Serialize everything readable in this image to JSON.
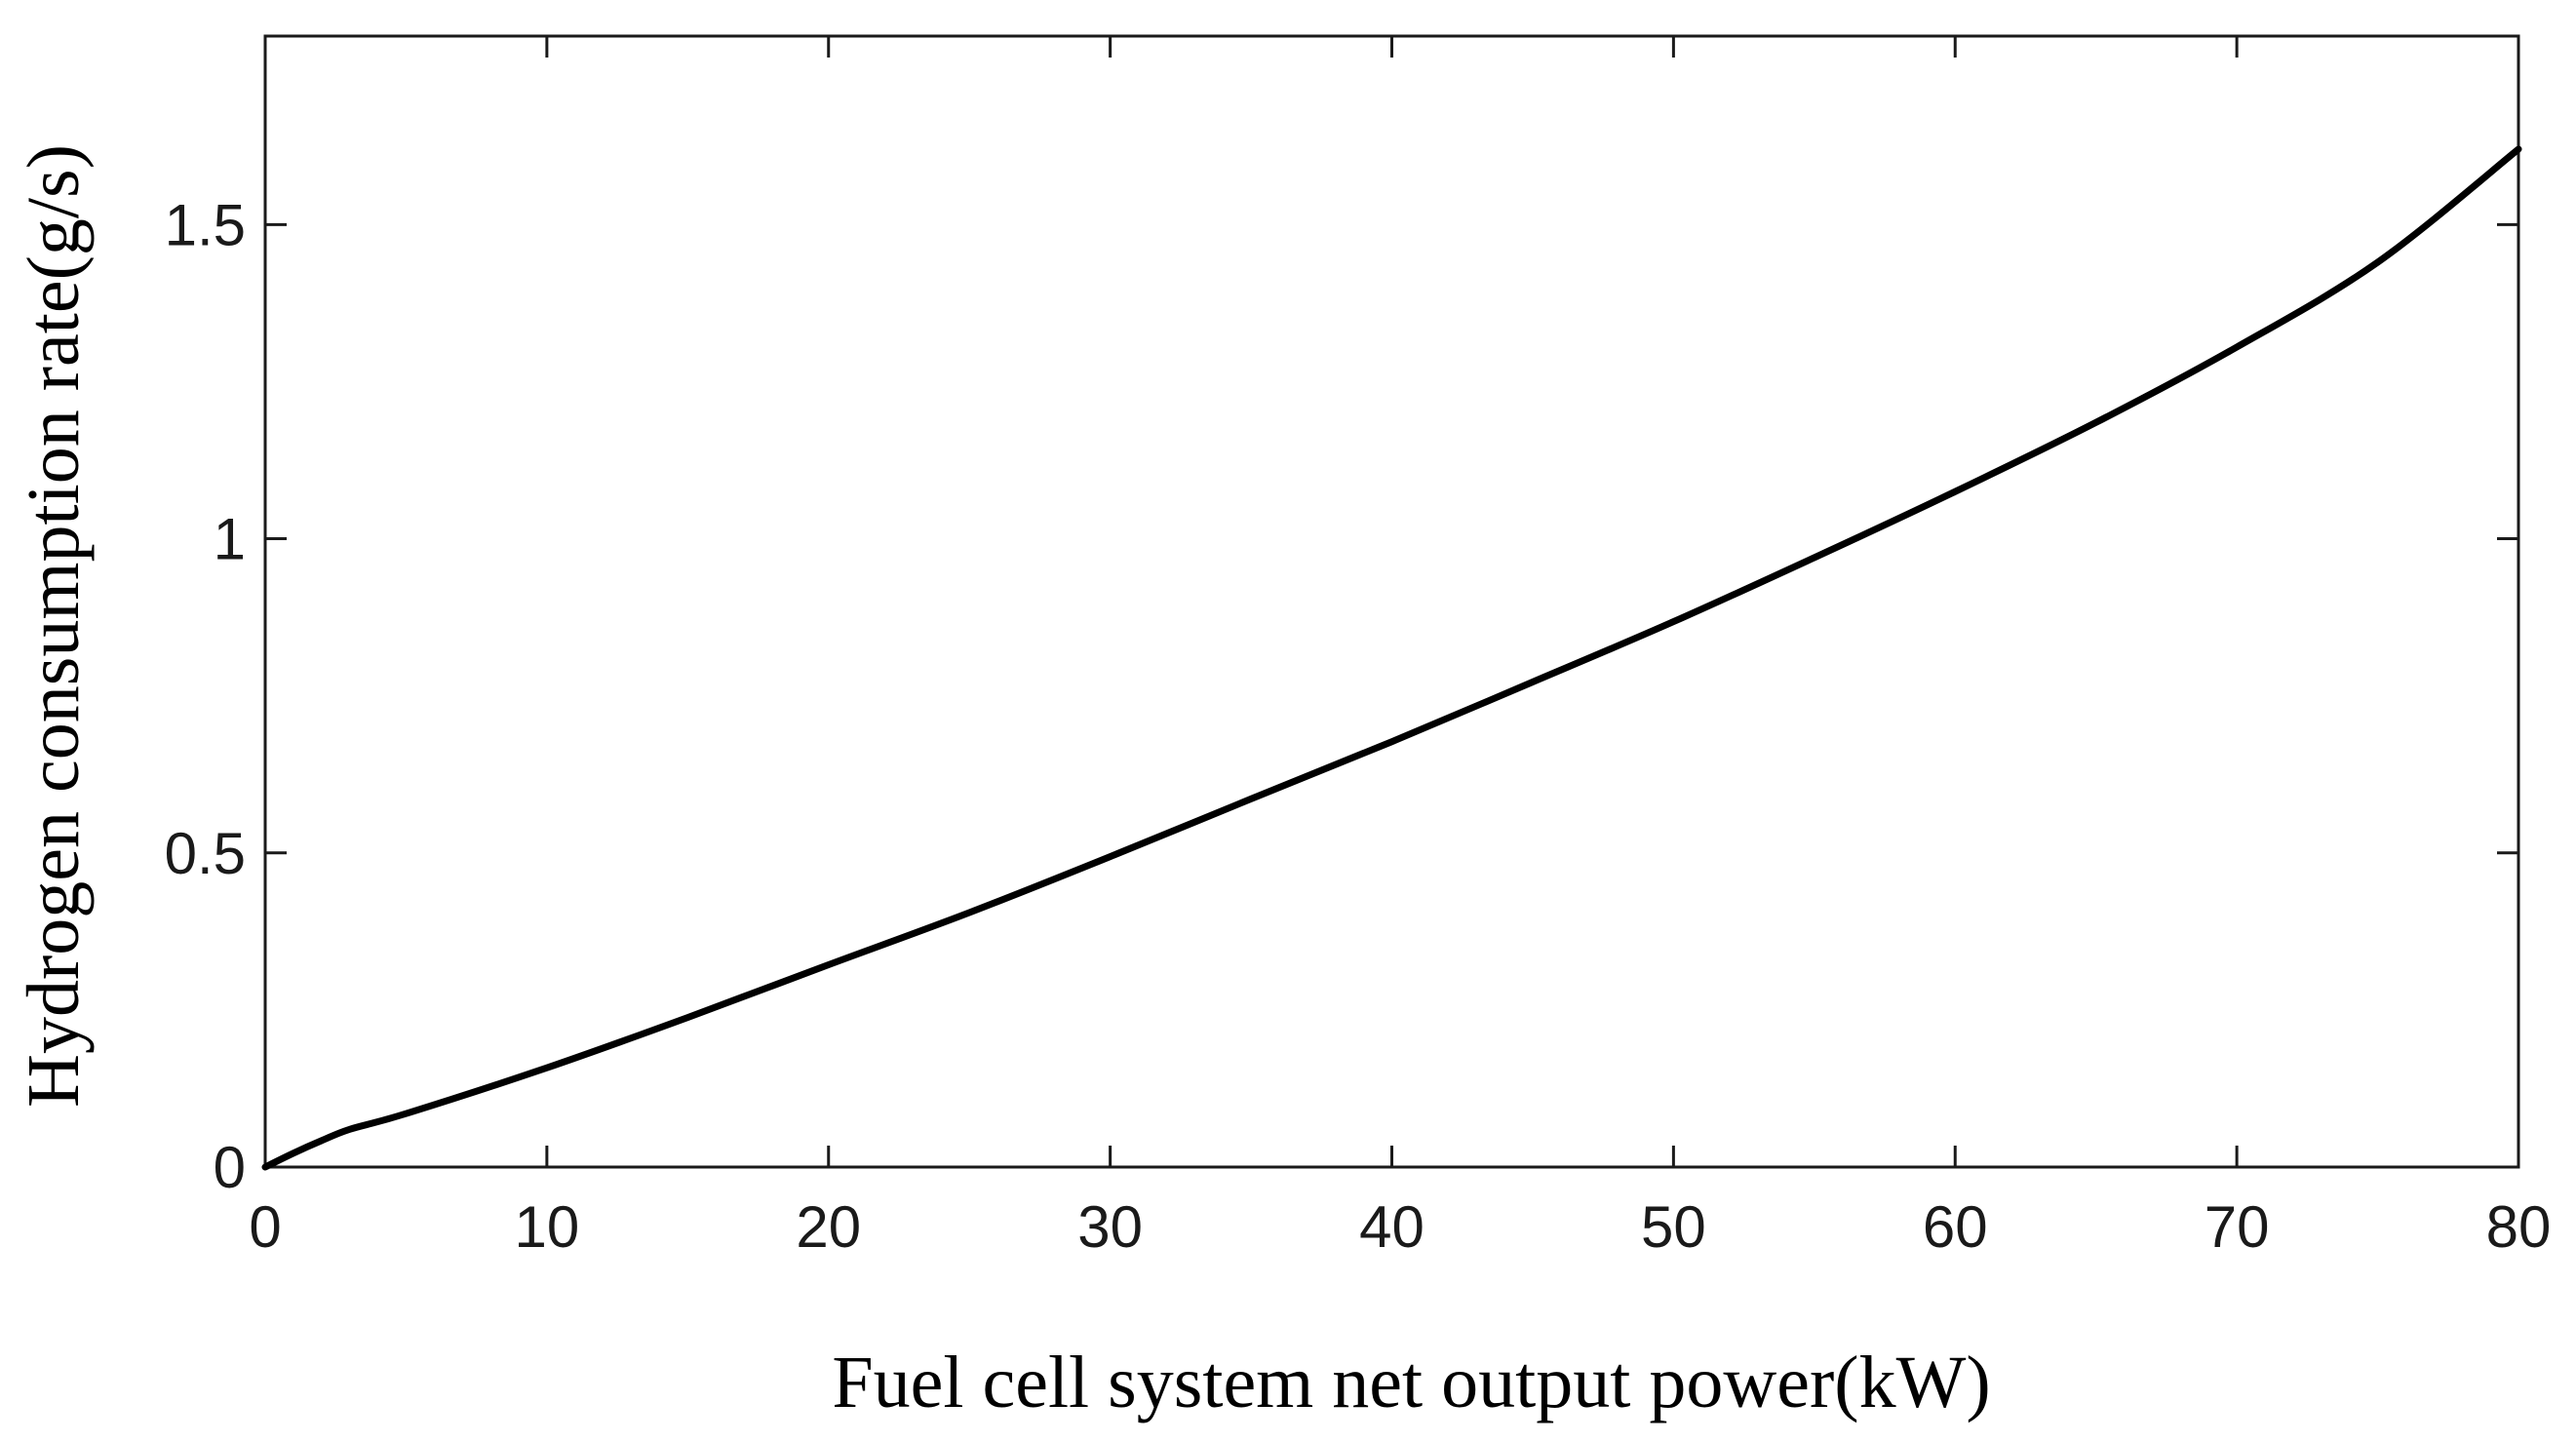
{
  "chart_data": {
    "type": "line",
    "title": "",
    "xlabel": "Fuel cell system net output power(kW)",
    "ylabel": "Hydrogen consumption rate(g/s)",
    "xlim": [
      0,
      80
    ],
    "ylim": [
      0,
      1.8
    ],
    "xticks": [
      0,
      10,
      20,
      30,
      40,
      50,
      60,
      70,
      80
    ],
    "xtick_labels": [
      "0",
      "10",
      "20",
      "30",
      "40",
      "50",
      "60",
      "70",
      "80"
    ],
    "yticks": [
      0,
      0.5,
      1,
      1.5
    ],
    "ytick_labels": [
      "0",
      "0.5",
      "1",
      "1.5"
    ],
    "grid": false,
    "legend": "none",
    "line_color": "#000000",
    "series": [
      {
        "x": [
          0,
          1,
          2,
          3,
          5,
          10,
          15,
          20,
          25,
          30,
          35,
          40,
          45,
          50,
          55,
          60,
          65,
          70,
          75,
          80
        ],
        "y": [
          0,
          0.022,
          0.042,
          0.06,
          0.085,
          0.158,
          0.238,
          0.322,
          0.405,
          0.494,
          0.586,
          0.677,
          0.772,
          0.868,
          0.97,
          1.075,
          1.185,
          1.305,
          1.44,
          1.62
        ]
      }
    ]
  }
}
